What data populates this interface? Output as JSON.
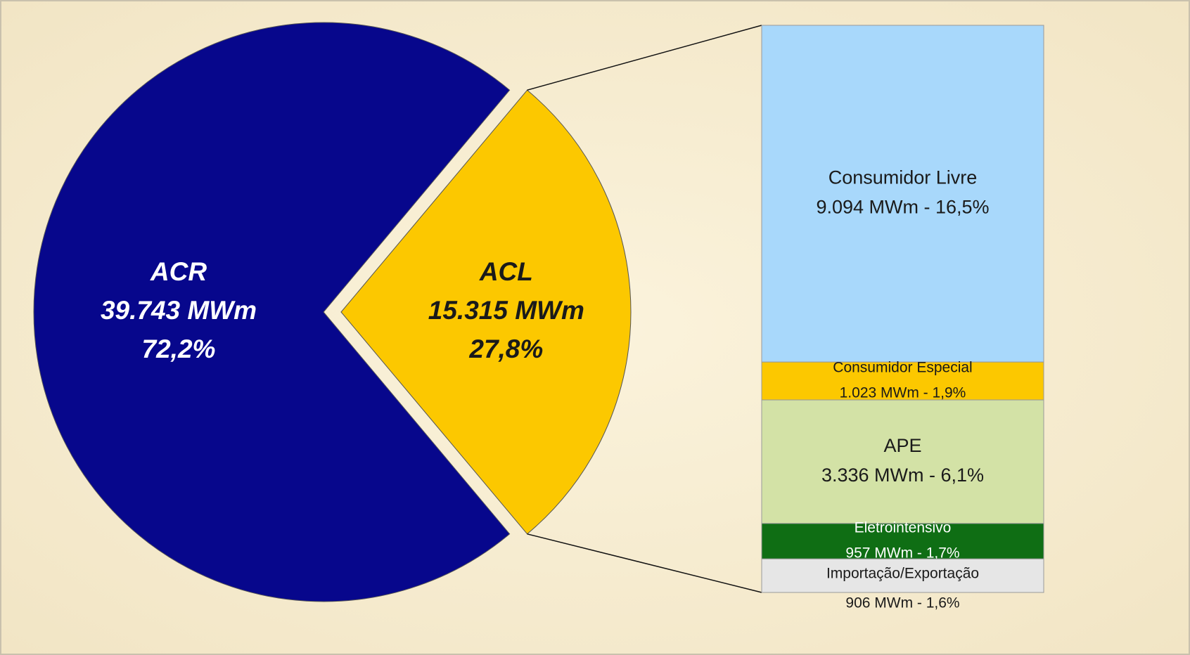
{
  "chart_data": {
    "type": "pie-of-bar",
    "pie": {
      "categories": [
        "ACR",
        "ACL"
      ],
      "values": [
        72.2,
        27.8
      ],
      "value_labels": [
        "72,2%",
        "27,8%"
      ],
      "amount_labels": [
        "39.743 MWm",
        "15.315 MWm"
      ],
      "colors": [
        "#07078c",
        "#fcc800"
      ],
      "label_colors": [
        "#ffffff",
        "#1a1a1a"
      ]
    },
    "bar": {
      "categories": [
        "Consumidor Livre",
        "Consumidor Especial",
        "APE",
        "Eletrointensivo",
        "Importação/Exportação"
      ],
      "values": [
        9094,
        1023,
        3336,
        957,
        906
      ],
      "value_labels": [
        "9.094 MWm - 16,5%",
        "1.023 MWm - 1,9%",
        "3.336 MWm - 6,1%",
        "957 MWm - 1,7%",
        "906 MWm - 1,6%"
      ],
      "colors": [
        "#a8d8fb",
        "#fcc800",
        "#d3e2a6",
        "#0f6e14",
        "#e6e6e6"
      ],
      "label_colors": [
        "#1a1a1a",
        "#1a1a1a",
        "#1a1a1a",
        "#ffffff",
        "#1a1a1a"
      ]
    }
  }
}
